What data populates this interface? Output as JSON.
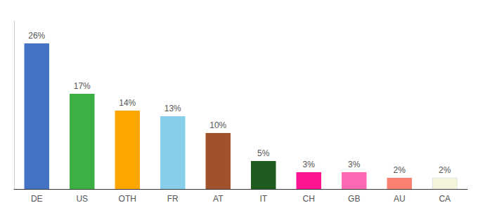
{
  "chart_data": {
    "type": "bar",
    "categories": [
      "DE",
      "US",
      "OTH",
      "FR",
      "AT",
      "IT",
      "CH",
      "GB",
      "AU",
      "CA"
    ],
    "values": [
      26,
      17,
      14,
      13,
      10,
      5,
      3,
      3,
      2,
      2
    ],
    "value_labels": [
      "26%",
      "17%",
      "14%",
      "13%",
      "10%",
      "5%",
      "3%",
      "3%",
      "2%",
      "2%"
    ],
    "colors": [
      "#4472C4",
      "#3CB043",
      "#FFA500",
      "#87CEEB",
      "#A0522D",
      "#1F5C1F",
      "#FF1493",
      "#FF69B4",
      "#FA8072",
      "#F5F5DC"
    ],
    "ylim": [
      0,
      30
    ],
    "data_labels": true,
    "tick_labels": "x",
    "grid": false
  }
}
